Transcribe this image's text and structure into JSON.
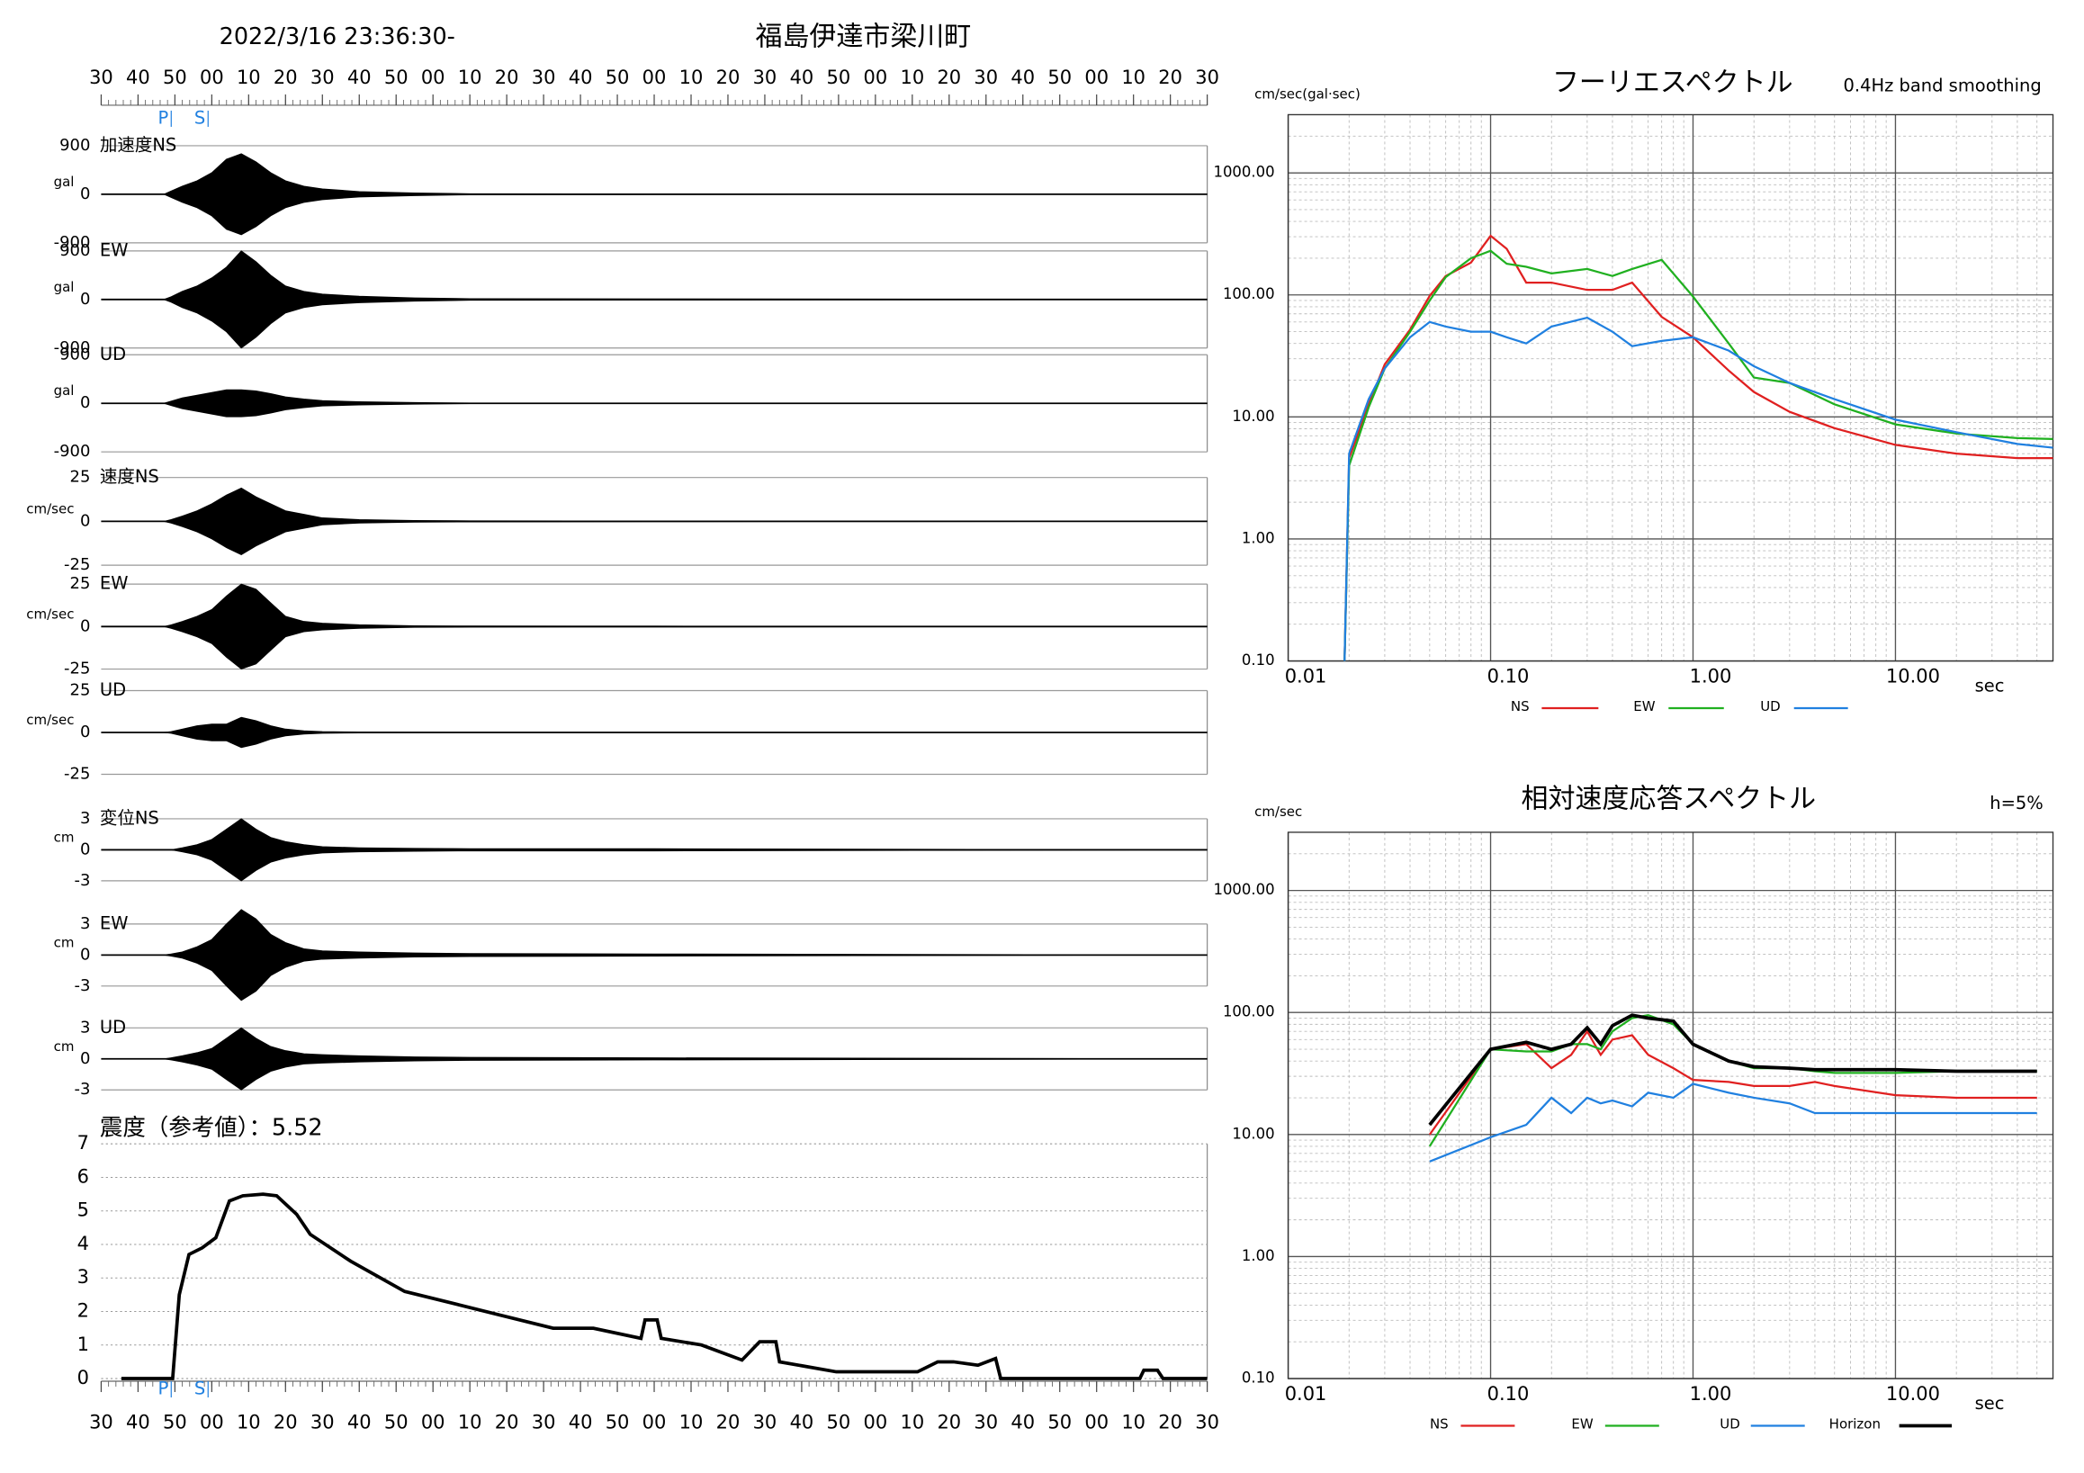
{
  "chart_data": [
    {
      "type": "waveform",
      "title": "福島伊達市梁川町",
      "subtitle": "2022/3/16 23:36:30-",
      "color": "#000000",
      "xlim": [
        0,
        300
      ],
      "xticks": [
        {
          "value": 0,
          "label": "30"
        },
        {
          "value": 10,
          "label": "40"
        },
        {
          "value": 20,
          "label": "50"
        },
        {
          "value": 30,
          "label": "00"
        },
        {
          "value": 40,
          "label": "10"
        },
        {
          "value": 50,
          "label": "20"
        },
        {
          "value": 60,
          "label": "30"
        },
        {
          "value": 70,
          "label": "40"
        },
        {
          "value": 80,
          "label": "50"
        },
        {
          "value": 90,
          "label": "00"
        },
        {
          "value": 100,
          "label": "10"
        },
        {
          "value": 110,
          "label": "20"
        },
        {
          "value": 120,
          "label": "30"
        },
        {
          "value": 130,
          "label": "40"
        },
        {
          "value": 140,
          "label": "50"
        },
        {
          "value": 150,
          "label": "00"
        },
        {
          "value": 160,
          "label": "10"
        },
        {
          "value": 170,
          "label": "20"
        },
        {
          "value": 180,
          "label": "30"
        },
        {
          "value": 190,
          "label": "40"
        },
        {
          "value": 200,
          "label": "50"
        },
        {
          "value": 210,
          "label": "00"
        },
        {
          "value": 220,
          "label": "10"
        },
        {
          "value": 230,
          "label": "20"
        },
        {
          "value": 240,
          "label": "30"
        },
        {
          "value": 250,
          "label": "40"
        },
        {
          "value": 260,
          "label": "50"
        },
        {
          "value": 270,
          "label": "00"
        },
        {
          "value": 280,
          "label": "10"
        },
        {
          "value": 290,
          "label": "20"
        },
        {
          "value": 300,
          "label": "30"
        }
      ],
      "markers": [
        {
          "label": "P",
          "x": 19
        },
        {
          "label": "S",
          "x": 29
        }
      ],
      "x": [
        0,
        17,
        19,
        22,
        26,
        30,
        34,
        38,
        42,
        46,
        50,
        55,
        60,
        70,
        85,
        100,
        150,
        300
      ],
      "panels": [
        {
          "label": "加速度NS",
          "unit": "gal",
          "ylim": [
            -900,
            900
          ],
          "yticks": [
            900,
            0,
            -900
          ],
          "values": [
            0,
            0,
            60,
            150,
            250,
            400,
            650,
            750,
            600,
            400,
            250,
            150,
            100,
            50,
            25,
            10,
            5,
            0
          ]
        },
        {
          "label": "EW",
          "unit": "gal",
          "ylim": [
            -900,
            900
          ],
          "yticks": [
            900,
            0,
            -900
          ],
          "values": [
            0,
            0,
            50,
            150,
            250,
            400,
            600,
            900,
            700,
            450,
            250,
            150,
            100,
            60,
            30,
            15,
            10,
            0
          ]
        },
        {
          "label": "UD",
          "unit": "gal",
          "ylim": [
            -900,
            900
          ],
          "yticks": [
            900,
            0,
            -900
          ],
          "values": [
            0,
            0,
            40,
            100,
            150,
            200,
            250,
            250,
            230,
            180,
            120,
            80,
            50,
            30,
            15,
            5,
            0,
            0
          ]
        },
        {
          "label": "速度NS",
          "unit": "cm/sec",
          "ylim": [
            -25,
            25
          ],
          "yticks": [
            25,
            0,
            -25
          ],
          "values": [
            0,
            0,
            1,
            3,
            6,
            10,
            15,
            19,
            14,
            10,
            6,
            4,
            2,
            1,
            0.5,
            0.3,
            0.2,
            0
          ]
        },
        {
          "label": "EW",
          "unit": "cm/sec",
          "ylim": [
            -25,
            25
          ],
          "yticks": [
            25,
            0,
            -25
          ],
          "values": [
            0,
            0,
            1,
            3,
            6,
            10,
            18,
            25,
            22,
            14,
            6,
            3,
            2,
            1,
            0.5,
            0.3,
            0.2,
            0
          ]
        },
        {
          "label": "UD",
          "unit": "cm/sec",
          "ylim": [
            -25,
            25
          ],
          "yticks": [
            25,
            0,
            -25
          ],
          "values": [
            0,
            0,
            0.5,
            2,
            4,
            5,
            5,
            9,
            7,
            4,
            2,
            1,
            0.5,
            0.3,
            0.2,
            0.1,
            0.1,
            0
          ]
        },
        {
          "label": "変位NS",
          "unit": "cm",
          "ylim": [
            -3,
            3
          ],
          "yticks": [
            3,
            0,
            -3
          ],
          "values": [
            0,
            0,
            0,
            0.2,
            0.5,
            1,
            2,
            3,
            2,
            1.2,
            0.8,
            0.5,
            0.3,
            0.2,
            0.15,
            0.1,
            0.1,
            0
          ]
        },
        {
          "label": "EW",
          "unit": "cm",
          "ylim": [
            -3,
            3
          ],
          "yticks": [
            3,
            0,
            -3
          ],
          "values": [
            0,
            0,
            0.1,
            0.3,
            0.8,
            1.5,
            3,
            4.4,
            3.5,
            2,
            1.2,
            0.6,
            0.4,
            0.3,
            0.2,
            0.15,
            0.1,
            0
          ]
        },
        {
          "label": "UD",
          "unit": "cm",
          "ylim": [
            -3,
            3
          ],
          "yticks": [
            3,
            0,
            -3
          ],
          "values": [
            0,
            0,
            0.1,
            0.3,
            0.6,
            1,
            2,
            3,
            2,
            1.2,
            0.8,
            0.5,
            0.4,
            0.3,
            0.2,
            0.15,
            0.1,
            0
          ]
        }
      ]
    },
    {
      "type": "step",
      "title": "震度（参考値）：5.52",
      "color": "#000000",
      "grid": true,
      "xlim": [
        0,
        300
      ],
      "ylim": [
        0,
        7
      ],
      "yticks": [
        0,
        1,
        2,
        3,
        4,
        5,
        6,
        7
      ],
      "x": [
        5.5,
        19.4,
        21.2,
        23.8,
        27.4,
        31.1,
        34.8,
        38.4,
        43.9,
        47.6,
        53,
        56.7,
        67.7,
        82.3,
        97,
        108,
        122.6,
        133.5,
        146.4,
        147.5,
        150.8,
        151.9,
        162.8,
        173.8,
        178.6,
        183,
        184,
        199.4,
        221.4,
        226.9,
        231.2,
        237.8,
        242.6,
        244,
        281.7,
        282.8,
        286.5,
        288,
        300
      ],
      "values": [
        0,
        0,
        2.5,
        3.7,
        3.9,
        4.2,
        5.3,
        5.45,
        5.5,
        5.45,
        4.9,
        4.3,
        3.5,
        2.6,
        2.2,
        1.9,
        1.5,
        1.5,
        1.2,
        1.75,
        1.75,
        1.2,
        1.0,
        0.55,
        1.1,
        1.1,
        0.5,
        0.2,
        0.2,
        0.5,
        0.5,
        0.4,
        0.6,
        0,
        0,
        0.25,
        0.25,
        0,
        0
      ]
    },
    {
      "type": "loglog",
      "title": "フーリエスペクトル",
      "annotation": "0.4Hz band smoothing",
      "ylabel": "cm/sec(gal·sec)",
      "xlabel": "sec",
      "log": true,
      "grid": true,
      "xlim": [
        0.01,
        60
      ],
      "ylim": [
        0.1,
        3000
      ],
      "xticks": [
        0.01,
        {
          "value": 0.1,
          "label": "0.10"
        },
        {
          "value": 1,
          "label": "1.00"
        },
        {
          "value": 10,
          "label": "10.00"
        }
      ],
      "yticks": [
        {
          "value": 1000,
          "label": "1000.00"
        },
        {
          "value": 100,
          "label": "100.00"
        },
        {
          "value": 10,
          "label": "10.00"
        },
        {
          "value": 1,
          "label": "1.00"
        },
        {
          "value": 0.1,
          "label": "0.10"
        }
      ],
      "x": [
        0.019,
        0.02,
        0.025,
        0.03,
        0.04,
        0.05,
        0.06,
        0.08,
        0.1,
        0.12,
        0.15,
        0.2,
        0.3,
        0.4,
        0.5,
        0.7,
        1,
        1.5,
        2,
        3,
        5,
        10,
        20,
        40,
        60
      ],
      "series": [
        {
          "name": "NS",
          "color": "#e02020",
          "values": [
            0.1,
            4.6,
            12.7,
            27,
            52,
            98,
            143,
            184,
            305,
            239,
            126,
            126,
            110,
            110,
            126,
            66,
            45,
            24,
            16,
            11,
            8.1,
            5.9,
            5,
            4.6,
            4.6
          ]
        },
        {
          "name": "EW",
          "color": "#20b020",
          "values": [
            0.1,
            4,
            12,
            25,
            50,
            90,
            140,
            200,
            230,
            180,
            170,
            150,
            163,
            143,
            163,
            194,
            97,
            40,
            21,
            19,
            12.7,
            8.7,
            7.3,
            6.7,
            6.6
          ]
        },
        {
          "name": "UD",
          "color": "#2080e0",
          "values": [
            0.1,
            5,
            14,
            25,
            45,
            60,
            55,
            50,
            50,
            45,
            40,
            55,
            65,
            50,
            38,
            42,
            45,
            35,
            26,
            19,
            14,
            9.5,
            7.5,
            6,
            5.6
          ]
        }
      ]
    },
    {
      "type": "loglog",
      "title": "相対速度応答スペクトル",
      "annotation": "h=5%",
      "ylabel": "cm/sec",
      "xlabel": "sec",
      "log": true,
      "grid": true,
      "xlim": [
        0.01,
        60
      ],
      "ylim": [
        0.1,
        3000
      ],
      "xticks": [
        0.01,
        {
          "value": 0.1,
          "label": "0.10"
        },
        {
          "value": 1,
          "label": "1.00"
        },
        {
          "value": 10,
          "label": "10.00"
        }
      ],
      "yticks": [
        {
          "value": 1000,
          "label": "1000.00"
        },
        {
          "value": 100,
          "label": "100.00"
        },
        {
          "value": 10,
          "label": "10.00"
        },
        {
          "value": 1,
          "label": "1.00"
        },
        {
          "value": 0.1,
          "label": "0.10"
        }
      ],
      "x": [
        0.05,
        0.1,
        0.15,
        0.2,
        0.25,
        0.3,
        0.35,
        0.4,
        0.5,
        0.6,
        0.8,
        1,
        1.5,
        2,
        3,
        4,
        5,
        10,
        20,
        50
      ],
      "series": [
        {
          "name": "NS",
          "color": "#e02020",
          "values": [
            10,
            50,
            55,
            35,
            45,
            70,
            45,
            60,
            65,
            45,
            35,
            28,
            27,
            25,
            25,
            27,
            25,
            21,
            20,
            20
          ]
        },
        {
          "name": "EW",
          "color": "#20b020",
          "values": [
            8,
            50,
            48,
            48,
            55,
            55,
            50,
            70,
            90,
            95,
            80,
            55,
            40,
            35,
            35,
            33,
            32,
            32,
            33,
            33
          ]
        },
        {
          "name": "UD",
          "color": "#2080e0",
          "values": [
            6,
            9.5,
            12,
            20,
            15,
            20,
            18,
            19,
            17,
            22,
            20,
            26,
            22,
            20,
            18,
            15,
            15,
            15,
            15,
            15
          ]
        },
        {
          "name": "Horizon",
          "color": "#000000",
          "values": [
            12,
            50,
            57,
            50,
            55,
            75,
            55,
            78,
            95,
            90,
            85,
            55,
            40,
            36,
            35,
            34,
            34,
            34,
            33,
            33
          ]
        }
      ]
    }
  ]
}
